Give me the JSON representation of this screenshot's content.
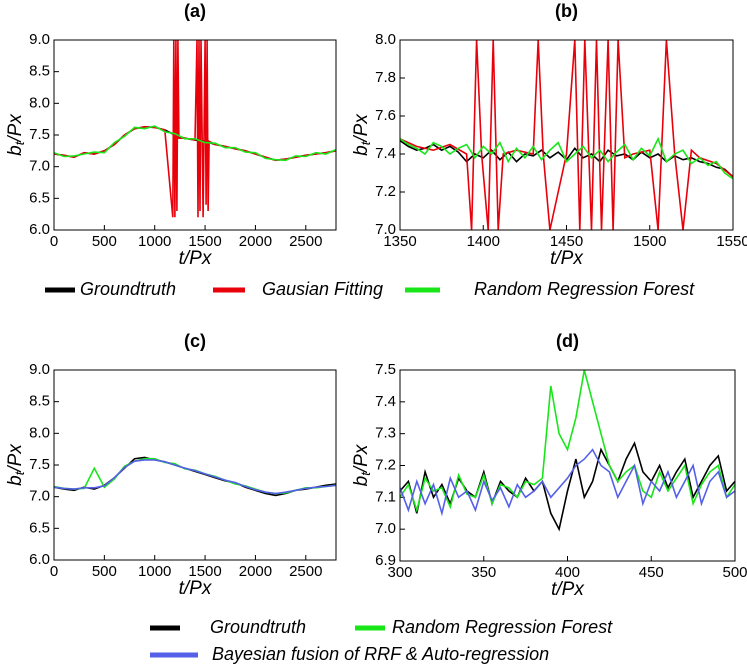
{
  "chart_data": [
    {
      "type": "line",
      "title": "(a)",
      "x_label": "t/Px",
      "y_label": {
        "base": "b",
        "sub": "t",
        "rest": "/Px"
      },
      "xlim": [
        0,
        2800
      ],
      "ylim": [
        6.0,
        9.0
      ],
      "xticks": [
        0,
        500,
        1000,
        1500,
        2000,
        2500
      ],
      "yticks": [
        {
          "value": 6,
          "label": "6.0"
        },
        6.5,
        {
          "value": 7,
          "label": "7.0"
        },
        7.5,
        {
          "value": 8,
          "label": "8.0"
        },
        8.5,
        {
          "value": 9,
          "label": "9.0"
        }
      ],
      "series": [
        {
          "name": "Groundtruth",
          "color": "#000000",
          "x": [
            0,
            100,
            200,
            300,
            400,
            500,
            600,
            700,
            800,
            900,
            1000,
            1100,
            1200,
            1300,
            1400,
            1500,
            1600,
            1700,
            1800,
            1900,
            2000,
            2100,
            2200,
            2300,
            2400,
            2500,
            2600,
            2700,
            2800
          ],
          "values": [
            7.2,
            7.18,
            7.15,
            7.22,
            7.2,
            7.25,
            7.35,
            7.5,
            7.6,
            7.63,
            7.62,
            7.58,
            7.5,
            7.45,
            7.42,
            7.4,
            7.35,
            7.32,
            7.28,
            7.25,
            7.2,
            7.15,
            7.1,
            7.12,
            7.15,
            7.18,
            7.2,
            7.22,
            7.25
          ]
        },
        {
          "name": "Gausian Fitting",
          "color": "#e8000b",
          "x": [
            0,
            100,
            200,
            300,
            400,
            500,
            600,
            700,
            800,
            900,
            1000,
            1100,
            1180,
            1190,
            1200,
            1210,
            1220,
            1230,
            1240,
            1300,
            1400,
            1420,
            1430,
            1440,
            1450,
            1460,
            1480,
            1500,
            1510,
            1520,
            1530,
            1540,
            1600,
            1700,
            1800,
            1900,
            2000,
            2100,
            2200,
            2300,
            2400,
            2500,
            2600,
            2700,
            2800
          ],
          "values": [
            7.2,
            7.18,
            7.15,
            7.22,
            7.2,
            7.25,
            7.35,
            7.5,
            7.6,
            7.63,
            7.62,
            7.58,
            6.2,
            9.0,
            6.2,
            9.0,
            6.3,
            9.0,
            7.45,
            7.45,
            7.42,
            9.0,
            6.2,
            9.0,
            6.3,
            9.0,
            6.2,
            9.0,
            6.4,
            9.0,
            6.3,
            7.4,
            7.35,
            7.32,
            7.28,
            7.25,
            7.2,
            7.15,
            7.1,
            7.12,
            7.15,
            7.18,
            7.2,
            7.22,
            7.25
          ]
        },
        {
          "name": "Random Regression Forest",
          "color": "#19e619",
          "x": [
            0,
            100,
            200,
            300,
            400,
            500,
            600,
            700,
            800,
            900,
            1000,
            1100,
            1200,
            1300,
            1400,
            1500,
            1600,
            1700,
            1800,
            1900,
            2000,
            2100,
            2200,
            2300,
            2400,
            2500,
            2600,
            2700,
            2800
          ],
          "values": [
            7.22,
            7.16,
            7.17,
            7.2,
            7.23,
            7.22,
            7.38,
            7.48,
            7.62,
            7.6,
            7.64,
            7.55,
            7.52,
            7.44,
            7.44,
            7.38,
            7.37,
            7.3,
            7.3,
            7.23,
            7.22,
            7.13,
            7.11,
            7.1,
            7.17,
            7.16,
            7.22,
            7.2,
            7.27
          ]
        }
      ]
    },
    {
      "type": "line",
      "title": "(b)",
      "x_label": "t/Px",
      "y_label": {
        "base": "b",
        "sub": "t",
        "rest": "/Px"
      },
      "xlim": [
        1350,
        1550
      ],
      "ylim": [
        7.0,
        8.0
      ],
      "xticks": [
        1350,
        1400,
        1450,
        1500,
        1550
      ],
      "yticks": [
        {
          "value": 7,
          "label": "7.0"
        },
        7.2,
        7.4,
        7.6,
        7.8,
        {
          "value": 8,
          "label": "8.0"
        }
      ],
      "series": [
        {
          "color": "#000000",
          "x": [
            1350,
            1355,
            1360,
            1365,
            1370,
            1375,
            1380,
            1385,
            1390,
            1395,
            1400,
            1405,
            1410,
            1415,
            1420,
            1425,
            1430,
            1435,
            1440,
            1445,
            1450,
            1455,
            1460,
            1465,
            1470,
            1475,
            1480,
            1485,
            1490,
            1495,
            1500,
            1505,
            1510,
            1515,
            1520,
            1525,
            1530,
            1535,
            1540,
            1545,
            1550
          ],
          "values": [
            7.47,
            7.44,
            7.42,
            7.43,
            7.45,
            7.42,
            7.44,
            7.41,
            7.36,
            7.4,
            7.38,
            7.42,
            7.37,
            7.41,
            7.36,
            7.4,
            7.39,
            7.42,
            7.38,
            7.41,
            7.37,
            7.43,
            7.38,
            7.4,
            7.36,
            7.42,
            7.39,
            7.4,
            7.37,
            7.41,
            7.38,
            7.4,
            7.36,
            7.39,
            7.37,
            7.38,
            7.36,
            7.35,
            7.33,
            7.32,
            7.28
          ]
        },
        {
          "color": "#e8000b",
          "x": [
            1350,
            1360,
            1370,
            1380,
            1390,
            1393,
            1396,
            1399,
            1403,
            1406,
            1409,
            1412,
            1420,
            1430,
            1433,
            1436,
            1440,
            1450,
            1455,
            1458,
            1461,
            1465,
            1468,
            1471,
            1475,
            1478,
            1481,
            1485,
            1490,
            1500,
            1505,
            1510,
            1515,
            1520,
            1525,
            1530,
            1540,
            1550
          ],
          "values": [
            7.48,
            7.44,
            7.42,
            7.45,
            7.4,
            7.0,
            8.0,
            7.4,
            7.0,
            8.0,
            7.0,
            7.4,
            7.42,
            7.4,
            8.0,
            7.4,
            7.0,
            7.4,
            8.0,
            7.0,
            8.0,
            7.0,
            8.0,
            7.0,
            8.0,
            7.0,
            8.0,
            7.38,
            7.4,
            7.42,
            7.0,
            8.0,
            7.4,
            7.0,
            7.42,
            7.38,
            7.35,
            7.28
          ]
        },
        {
          "color": "#19e619",
          "x": [
            1350,
            1355,
            1360,
            1365,
            1370,
            1375,
            1380,
            1385,
            1390,
            1395,
            1400,
            1405,
            1410,
            1415,
            1420,
            1425,
            1430,
            1435,
            1440,
            1445,
            1450,
            1455,
            1460,
            1465,
            1470,
            1475,
            1480,
            1485,
            1490,
            1495,
            1500,
            1505,
            1510,
            1515,
            1520,
            1525,
            1530,
            1535,
            1540,
            1545,
            1550
          ],
          "values": [
            7.48,
            7.45,
            7.43,
            7.4,
            7.46,
            7.44,
            7.4,
            7.43,
            7.45,
            7.38,
            7.44,
            7.4,
            7.46,
            7.36,
            7.43,
            7.38,
            7.44,
            7.37,
            7.42,
            7.46,
            7.36,
            7.4,
            7.44,
            7.38,
            7.42,
            7.36,
            7.41,
            7.45,
            7.37,
            7.43,
            7.39,
            7.48,
            7.36,
            7.4,
            7.42,
            7.35,
            7.38,
            7.34,
            7.36,
            7.3,
            7.27
          ]
        }
      ]
    },
    {
      "type": "line",
      "title": "(c)",
      "x_label": "t/Px",
      "y_label": {
        "base": "b",
        "sub": "t",
        "rest": "/Px"
      },
      "xlim": [
        0,
        2800
      ],
      "ylim": [
        6.0,
        9.0
      ],
      "xticks": [
        0,
        500,
        1000,
        1500,
        2000,
        2500
      ],
      "yticks": [
        {
          "value": 6,
          "label": "6.0"
        },
        6.5,
        {
          "value": 7,
          "label": "7.0"
        },
        7.5,
        {
          "value": 8,
          "label": "8.0"
        },
        8.5,
        {
          "value": 9,
          "label": "9.0"
        }
      ],
      "series": [
        {
          "name": "Groundtruth",
          "color": "#000000",
          "x": [
            0,
            100,
            200,
            300,
            400,
            500,
            600,
            700,
            800,
            900,
            1000,
            1100,
            1200,
            1300,
            1400,
            1500,
            1600,
            1700,
            1800,
            1900,
            2000,
            2100,
            2200,
            2300,
            2400,
            2500,
            2600,
            2700,
            2800
          ],
          "values": [
            7.15,
            7.12,
            7.1,
            7.15,
            7.12,
            7.18,
            7.3,
            7.45,
            7.6,
            7.62,
            7.58,
            7.55,
            7.5,
            7.45,
            7.4,
            7.35,
            7.3,
            7.25,
            7.22,
            7.15,
            7.1,
            7.05,
            7.02,
            7.05,
            7.1,
            7.12,
            7.15,
            7.18,
            7.2
          ]
        },
        {
          "name": "Random Regression Forest",
          "color": "#19e619",
          "x": [
            0,
            100,
            200,
            300,
            400,
            500,
            600,
            700,
            800,
            900,
            1000,
            1100,
            1200,
            1300,
            1400,
            1500,
            1600,
            1700,
            1800,
            1900,
            2000,
            2100,
            2200,
            2300,
            2400,
            2500,
            2600,
            2700,
            2800
          ],
          "values": [
            7.16,
            7.13,
            7.12,
            7.13,
            7.45,
            7.15,
            7.28,
            7.48,
            7.56,
            7.6,
            7.6,
            7.54,
            7.52,
            7.44,
            7.42,
            7.36,
            7.32,
            7.26,
            7.2,
            7.17,
            7.12,
            7.07,
            7.05,
            7.06,
            7.1,
            7.14,
            7.14,
            7.16,
            7.18
          ]
        },
        {
          "name": "Bayesian fusion of RRF & Auto-regression",
          "color": "#5560e8",
          "x": [
            0,
            100,
            200,
            300,
            400,
            500,
            600,
            700,
            800,
            900,
            1000,
            1100,
            1200,
            1300,
            1400,
            1500,
            1600,
            1700,
            1800,
            1900,
            2000,
            2100,
            2200,
            2300,
            2400,
            2500,
            2600,
            2700,
            2800
          ],
          "values": [
            7.15,
            7.13,
            7.12,
            7.14,
            7.14,
            7.17,
            7.3,
            7.46,
            7.56,
            7.58,
            7.58,
            7.55,
            7.5,
            7.45,
            7.41,
            7.36,
            7.31,
            7.26,
            7.22,
            7.16,
            7.11,
            7.07,
            7.05,
            7.07,
            7.1,
            7.13,
            7.15,
            7.16,
            7.18
          ]
        }
      ]
    },
    {
      "type": "line",
      "title": "(d)",
      "x_label": "t/Px",
      "y_label": {
        "base": "b",
        "sub": "t",
        "rest": "/Px"
      },
      "xlim": [
        300,
        500
      ],
      "ylim": [
        6.9,
        7.5
      ],
      "xticks": [
        300,
        350,
        400,
        450,
        500
      ],
      "yticks": [
        6.9,
        {
          "value": 7,
          "label": "7.0"
        },
        7.1,
        7.2,
        7.3,
        7.4,
        7.5
      ],
      "series": [
        {
          "color": "#000000",
          "x": [
            300,
            305,
            310,
            315,
            320,
            325,
            330,
            335,
            340,
            345,
            350,
            355,
            360,
            365,
            370,
            375,
            380,
            385,
            390,
            395,
            400,
            405,
            410,
            415,
            420,
            425,
            430,
            435,
            440,
            445,
            450,
            455,
            460,
            465,
            470,
            475,
            480,
            485,
            490,
            495,
            500
          ],
          "values": [
            7.12,
            7.15,
            7.05,
            7.18,
            7.1,
            7.14,
            7.08,
            7.16,
            7.12,
            7.1,
            7.18,
            7.08,
            7.15,
            7.12,
            7.1,
            7.16,
            7.12,
            7.15,
            7.05,
            7.0,
            7.12,
            7.22,
            7.1,
            7.15,
            7.25,
            7.2,
            7.15,
            7.22,
            7.27,
            7.18,
            7.15,
            7.2,
            7.13,
            7.18,
            7.22,
            7.1,
            7.15,
            7.2,
            7.23,
            7.12,
            7.15
          ]
        },
        {
          "color": "#19e619",
          "x": [
            300,
            305,
            310,
            315,
            320,
            325,
            330,
            335,
            340,
            345,
            350,
            355,
            360,
            365,
            370,
            375,
            380,
            385,
            390,
            395,
            400,
            405,
            410,
            415,
            420,
            425,
            430,
            435,
            440,
            445,
            450,
            455,
            460,
            465,
            470,
            475,
            480,
            485,
            490,
            495,
            500
          ],
          "values": [
            7.1,
            7.14,
            7.06,
            7.16,
            7.12,
            7.13,
            7.07,
            7.17,
            7.11,
            7.1,
            7.17,
            7.08,
            7.14,
            7.13,
            7.1,
            7.15,
            7.14,
            7.16,
            7.45,
            7.3,
            7.25,
            7.35,
            7.5,
            7.4,
            7.3,
            7.2,
            7.15,
            7.18,
            7.2,
            7.12,
            7.1,
            7.18,
            7.12,
            7.16,
            7.2,
            7.08,
            7.14,
            7.18,
            7.2,
            7.1,
            7.14
          ]
        },
        {
          "color": "#5560e8",
          "x": [
            300,
            305,
            310,
            315,
            320,
            325,
            330,
            335,
            340,
            345,
            350,
            355,
            360,
            365,
            370,
            375,
            380,
            385,
            390,
            395,
            400,
            405,
            410,
            415,
            420,
            425,
            430,
            435,
            440,
            445,
            450,
            455,
            460,
            465,
            470,
            475,
            480,
            485,
            490,
            495,
            500
          ],
          "values": [
            7.13,
            7.06,
            7.15,
            7.08,
            7.14,
            7.05,
            7.16,
            7.1,
            7.12,
            7.06,
            7.15,
            7.09,
            7.13,
            7.07,
            7.14,
            7.1,
            7.12,
            7.15,
            7.1,
            7.13,
            7.16,
            7.2,
            7.22,
            7.25,
            7.2,
            7.18,
            7.1,
            7.15,
            7.2,
            7.08,
            7.15,
            7.12,
            7.18,
            7.1,
            7.15,
            7.2,
            7.08,
            7.15,
            7.18,
            7.1,
            7.12
          ]
        }
      ]
    }
  ]
}
